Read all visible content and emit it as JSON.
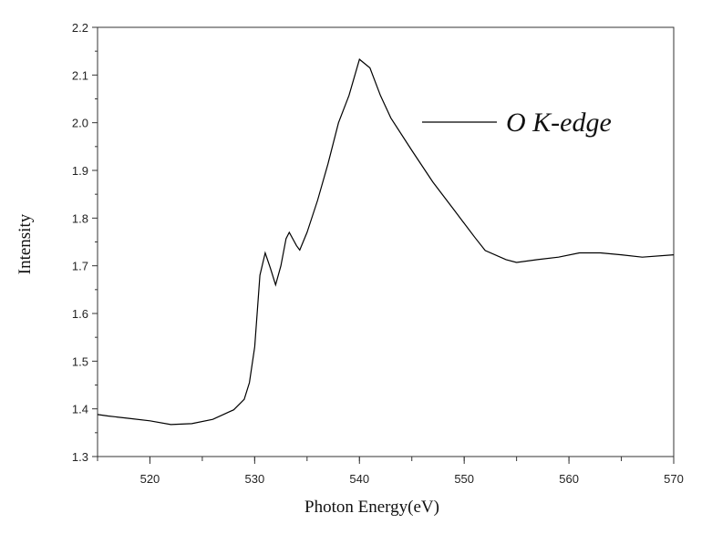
{
  "chart_data": {
    "type": "line",
    "title": "",
    "xlabel": "Photon Energy(eV)",
    "ylabel": "Intensity",
    "xlim": [
      515,
      570
    ],
    "ylim": [
      1.3,
      2.2
    ],
    "xticks": [
      520,
      530,
      540,
      550,
      560,
      570
    ],
    "xticks_minor_step": 5,
    "yticks": [
      "1.3",
      "1.4",
      "1.5",
      "1.6",
      "1.7",
      "1.8",
      "1.9",
      "2.0",
      "2.1",
      "2.2"
    ],
    "grid": false,
    "legend": {
      "placement": "top-right"
    },
    "series": [
      {
        "name": "O K-edge",
        "color": "#000000",
        "x": [
          515,
          516,
          518,
          520,
          522,
          524,
          526,
          528,
          529,
          529.5,
          530,
          530.5,
          531,
          531.5,
          532,
          532.5,
          533,
          533.3,
          534,
          534.3,
          535,
          536,
          537,
          538,
          539,
          540,
          541,
          542,
          543,
          545,
          547,
          549,
          551,
          552,
          554,
          555,
          557,
          559,
          561,
          563,
          565,
          567,
          570
        ],
        "y": [
          1.388,
          1.385,
          1.38,
          1.375,
          1.367,
          1.369,
          1.378,
          1.398,
          1.42,
          1.455,
          1.53,
          1.68,
          1.727,
          1.695,
          1.66,
          1.7,
          1.757,
          1.77,
          1.742,
          1.733,
          1.77,
          1.837,
          1.914,
          2.0,
          2.057,
          2.133,
          2.115,
          2.057,
          2.01,
          1.942,
          1.876,
          1.818,
          1.76,
          1.732,
          1.713,
          1.707,
          1.713,
          1.718,
          1.727,
          1.727,
          1.723,
          1.718,
          1.723
        ]
      }
    ]
  }
}
